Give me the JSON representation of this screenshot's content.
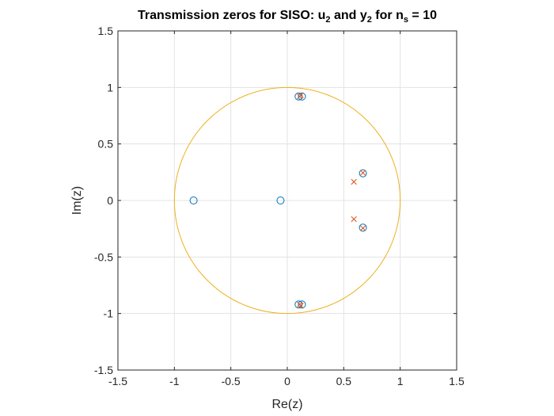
{
  "chart_data": {
    "type": "scatter",
    "title": {
      "parts": [
        {
          "text": "Transmission zeros for SISO: u",
          "sub": false
        },
        {
          "text": "2",
          "sub": true
        },
        {
          "text": " and y",
          "sub": false
        },
        {
          "text": "2",
          "sub": true
        },
        {
          "text": " for n",
          "sub": false
        },
        {
          "text": "s",
          "sub": true
        },
        {
          "text": " = 10",
          "sub": false
        }
      ]
    },
    "xlabel": "Re(z)",
    "ylabel": "Im(z)",
    "xlim": [
      -1.5,
      1.5
    ],
    "ylim": [
      -1.5,
      1.5
    ],
    "xticks": [
      -1.5,
      -1,
      -0.5,
      0,
      0.5,
      1,
      1.5
    ],
    "xtick_labels": [
      "-1.5",
      "-1",
      "-0.5",
      "0",
      "0.5",
      "1",
      "1.5"
    ],
    "yticks": [
      -1.5,
      -1,
      -0.5,
      0,
      0.5,
      1,
      1.5
    ],
    "ytick_labels": [
      "-1.5",
      "-1",
      "-0.5",
      "0",
      "0.5",
      "1",
      "1.5"
    ],
    "grid": true,
    "unit_circle": {
      "radius": 1,
      "color": "#EDB120"
    },
    "series": [
      {
        "marker": "o",
        "color": "#0072BD",
        "points": [
          {
            "x": -0.83,
            "y": 0
          },
          {
            "x": -0.06,
            "y": 0
          },
          {
            "x": 0.1,
            "y": 0.92
          },
          {
            "x": 0.13,
            "y": 0.92
          },
          {
            "x": 0.1,
            "y": -0.92
          },
          {
            "x": 0.13,
            "y": -0.92
          },
          {
            "x": 0.67,
            "y": 0.24
          },
          {
            "x": 0.67,
            "y": -0.24
          }
        ]
      },
      {
        "marker": "x",
        "color": "#D95319",
        "points": [
          {
            "x": 0.11,
            "y": 0.92
          },
          {
            "x": 0.12,
            "y": 0.93
          },
          {
            "x": 0.11,
            "y": -0.92
          },
          {
            "x": 0.12,
            "y": -0.93
          },
          {
            "x": 0.67,
            "y": 0.245
          },
          {
            "x": 0.67,
            "y": -0.245
          },
          {
            "x": 0.59,
            "y": 0.165
          },
          {
            "x": 0.59,
            "y": -0.165
          }
        ]
      }
    ]
  }
}
